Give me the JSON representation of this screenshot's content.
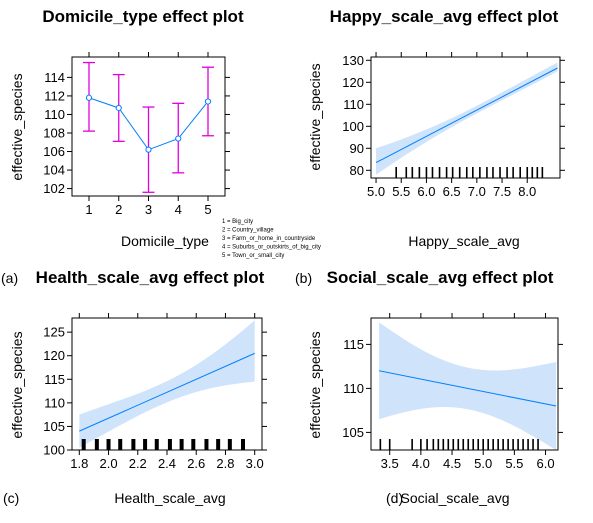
{
  "colors": {
    "line": "#0080ff",
    "band": "#cfe3fb",
    "errorbar": "#e000e0",
    "axis": "#000000"
  },
  "chart_data": [
    {
      "id": "domicile",
      "type": "line",
      "title": "Domicile_type effect plot",
      "prefix": "",
      "xlabel": "Domicile_type",
      "ylabel": "effective_species",
      "categories": [
        "1",
        "2",
        "3",
        "4",
        "5"
      ],
      "values": [
        111.8,
        110.7,
        106.2,
        107.4,
        111.4
      ],
      "lower": [
        108.2,
        107.1,
        101.6,
        103.7,
        107.7
      ],
      "upper": [
        115.6,
        114.3,
        110.8,
        111.2,
        115.1
      ],
      "ylim": [
        101.2,
        116.2
      ],
      "yticks": [
        "102",
        "104",
        "106",
        "108",
        "110",
        "112",
        "114"
      ],
      "legend": [
        "1 = Big_city",
        "2 = Country_village",
        "3 = Farm_or_home_in_countryside",
        "4 = Suburbs_or_outskirts_of_big_city",
        "5 = Town_or_small_city"
      ]
    },
    {
      "id": "happy",
      "type": "line",
      "title": "Happy_scale_avg effect plot",
      "prefix": "(a)",
      "xlabel": "Happy_scale_avg",
      "ylabel": "effective_species",
      "x": [
        5.0,
        8.6
      ],
      "y": [
        83.5,
        126.5
      ],
      "lower": [
        78.0,
        125.0
      ],
      "upper": [
        90.0,
        129.0
      ],
      "xlim": [
        4.9,
        8.65
      ],
      "ylim": [
        76.5,
        131.5
      ],
      "xticks": [
        "5.0",
        "5.5",
        "6.0",
        "6.5",
        "7.0",
        "7.5",
        "8.0"
      ],
      "yticks": [
        "80",
        "90",
        "100",
        "110",
        "120",
        "130"
      ],
      "rug": [
        5.4,
        5.6,
        5.72,
        5.86,
        6.0,
        6.12,
        6.26,
        6.4,
        6.52,
        6.66,
        6.8,
        6.92,
        7.06,
        7.2,
        7.32,
        7.46,
        7.6,
        7.72,
        7.86,
        8.0,
        8.1,
        8.2,
        8.3
      ]
    },
    {
      "id": "health",
      "type": "line",
      "title": "Health_scale_avg effect plot",
      "prefix": "(b)",
      "xlabel": "Health_scale_avg",
      "ylabel": "effective_species",
      "x": [
        1.8,
        3.0
      ],
      "y": [
        104.0,
        120.5
      ],
      "lower": [
        100.5,
        114.5
      ],
      "upper": [
        107.5,
        127.5
      ],
      "xlim": [
        1.75,
        3.05
      ],
      "ylim": [
        100.0,
        128.0
      ],
      "xticks": [
        "1.8",
        "2.0",
        "2.2",
        "2.4",
        "2.6",
        "2.8",
        "3.0"
      ],
      "yticks": [
        "100",
        "105",
        "110",
        "115",
        "120",
        "125"
      ],
      "rug": [
        1.83,
        1.92,
        2.0,
        2.08,
        2.17,
        2.25,
        2.33,
        2.42,
        2.5,
        2.58,
        2.67,
        2.75,
        2.83,
        2.92
      ]
    },
    {
      "id": "social",
      "type": "line",
      "title": "Social_scale_avg effect plot",
      "prefix": "(c)",
      "xlabel": "Social_scale_avg",
      "ylabel": "effective_species",
      "x": [
        3.33,
        6.17
      ],
      "y": [
        112.0,
        108.0
      ],
      "lower": [
        106.5,
        103.0
      ],
      "upper": [
        117.5,
        113.0
      ],
      "xlim": [
        3.2,
        6.2
      ],
      "ylim": [
        103.0,
        118.0
      ],
      "xticks": [
        "3.5",
        "4.0",
        "4.5",
        "5.0",
        "5.5",
        "6.0"
      ],
      "yticks": [
        "105",
        "110",
        "115"
      ],
      "rug": [
        3.35,
        3.5,
        3.86,
        4.0,
        4.1,
        4.2,
        4.28,
        4.36,
        4.44,
        4.52,
        4.6,
        4.68,
        4.76,
        4.84,
        4.92,
        5.0,
        5.08,
        5.16,
        5.24,
        5.32,
        5.4,
        5.48,
        5.56,
        5.64,
        5.72,
        5.8,
        5.88
      ]
    }
  ],
  "bottom_prefix": "(d)"
}
